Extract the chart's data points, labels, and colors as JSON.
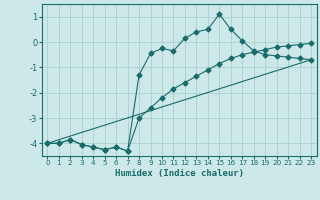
{
  "title": "",
  "xlabel": "Humidex (Indice chaleur)",
  "xlim": [
    -0.5,
    23.5
  ],
  "ylim": [
    -4.5,
    1.5
  ],
  "yticks": [
    -4,
    -3,
    -2,
    -1,
    0,
    1
  ],
  "xticks": [
    0,
    1,
    2,
    3,
    4,
    5,
    6,
    7,
    8,
    9,
    10,
    11,
    12,
    13,
    14,
    15,
    16,
    17,
    18,
    19,
    20,
    21,
    22,
    23
  ],
  "bg_color": "#cce8e8",
  "grid_color": "#aacfcf",
  "line_color": "#1a6b6b",
  "line1_x": [
    0,
    1,
    2,
    3,
    4,
    5,
    6,
    7,
    8,
    9,
    10,
    11,
    12,
    13,
    14,
    15,
    16,
    17,
    18,
    19,
    20,
    21,
    22,
    23
  ],
  "line1_y": [
    -4.0,
    -4.0,
    -3.85,
    -4.05,
    -4.15,
    -4.25,
    -4.15,
    -4.3,
    -1.3,
    -0.45,
    -0.25,
    -0.35,
    0.15,
    0.4,
    0.5,
    1.1,
    0.5,
    0.05,
    -0.35,
    -0.5,
    -0.55,
    -0.6,
    -0.65,
    -0.7
  ],
  "line2_x": [
    0,
    1,
    2,
    3,
    4,
    5,
    6,
    7,
    8,
    9,
    10,
    11,
    12,
    13,
    14,
    15,
    16,
    17,
    18,
    19,
    20,
    21,
    22,
    23
  ],
  "line2_y": [
    -4.0,
    -4.0,
    -3.85,
    -4.05,
    -4.15,
    -4.25,
    -4.15,
    -4.3,
    -3.0,
    -2.6,
    -2.2,
    -1.85,
    -1.6,
    -1.35,
    -1.1,
    -0.85,
    -0.65,
    -0.5,
    -0.4,
    -0.3,
    -0.2,
    -0.15,
    -0.1,
    -0.05
  ],
  "line3_x": [
    0,
    23
  ],
  "line3_y": [
    -4.0,
    -0.7
  ]
}
